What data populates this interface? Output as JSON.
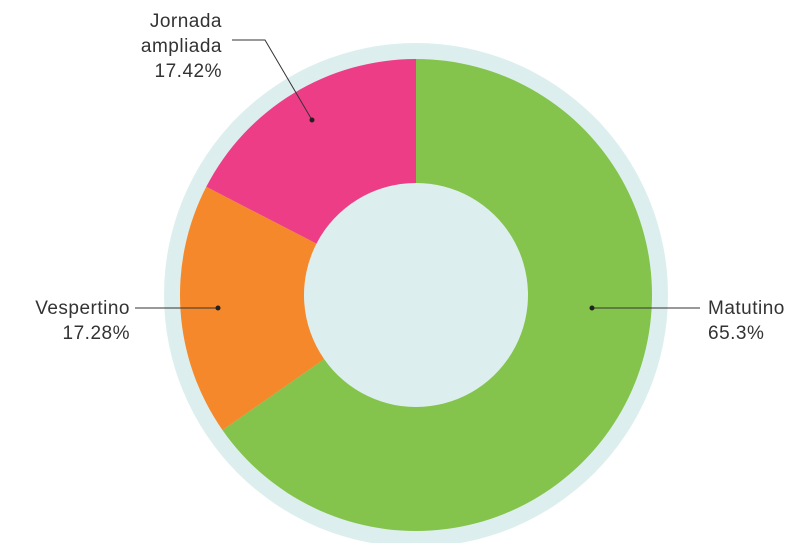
{
  "chart_data": {
    "type": "donut",
    "categories": [
      "Matutino",
      "Vespertino",
      "Jornada ampliada"
    ],
    "values": [
      65.3,
      17.28,
      17.42
    ],
    "value_labels": [
      "65.3%",
      "17.28%",
      "17.42%"
    ],
    "colors": [
      "#84c44c",
      "#f5882a",
      "#ee3d87"
    ],
    "ring_color": "#dcefee"
  }
}
